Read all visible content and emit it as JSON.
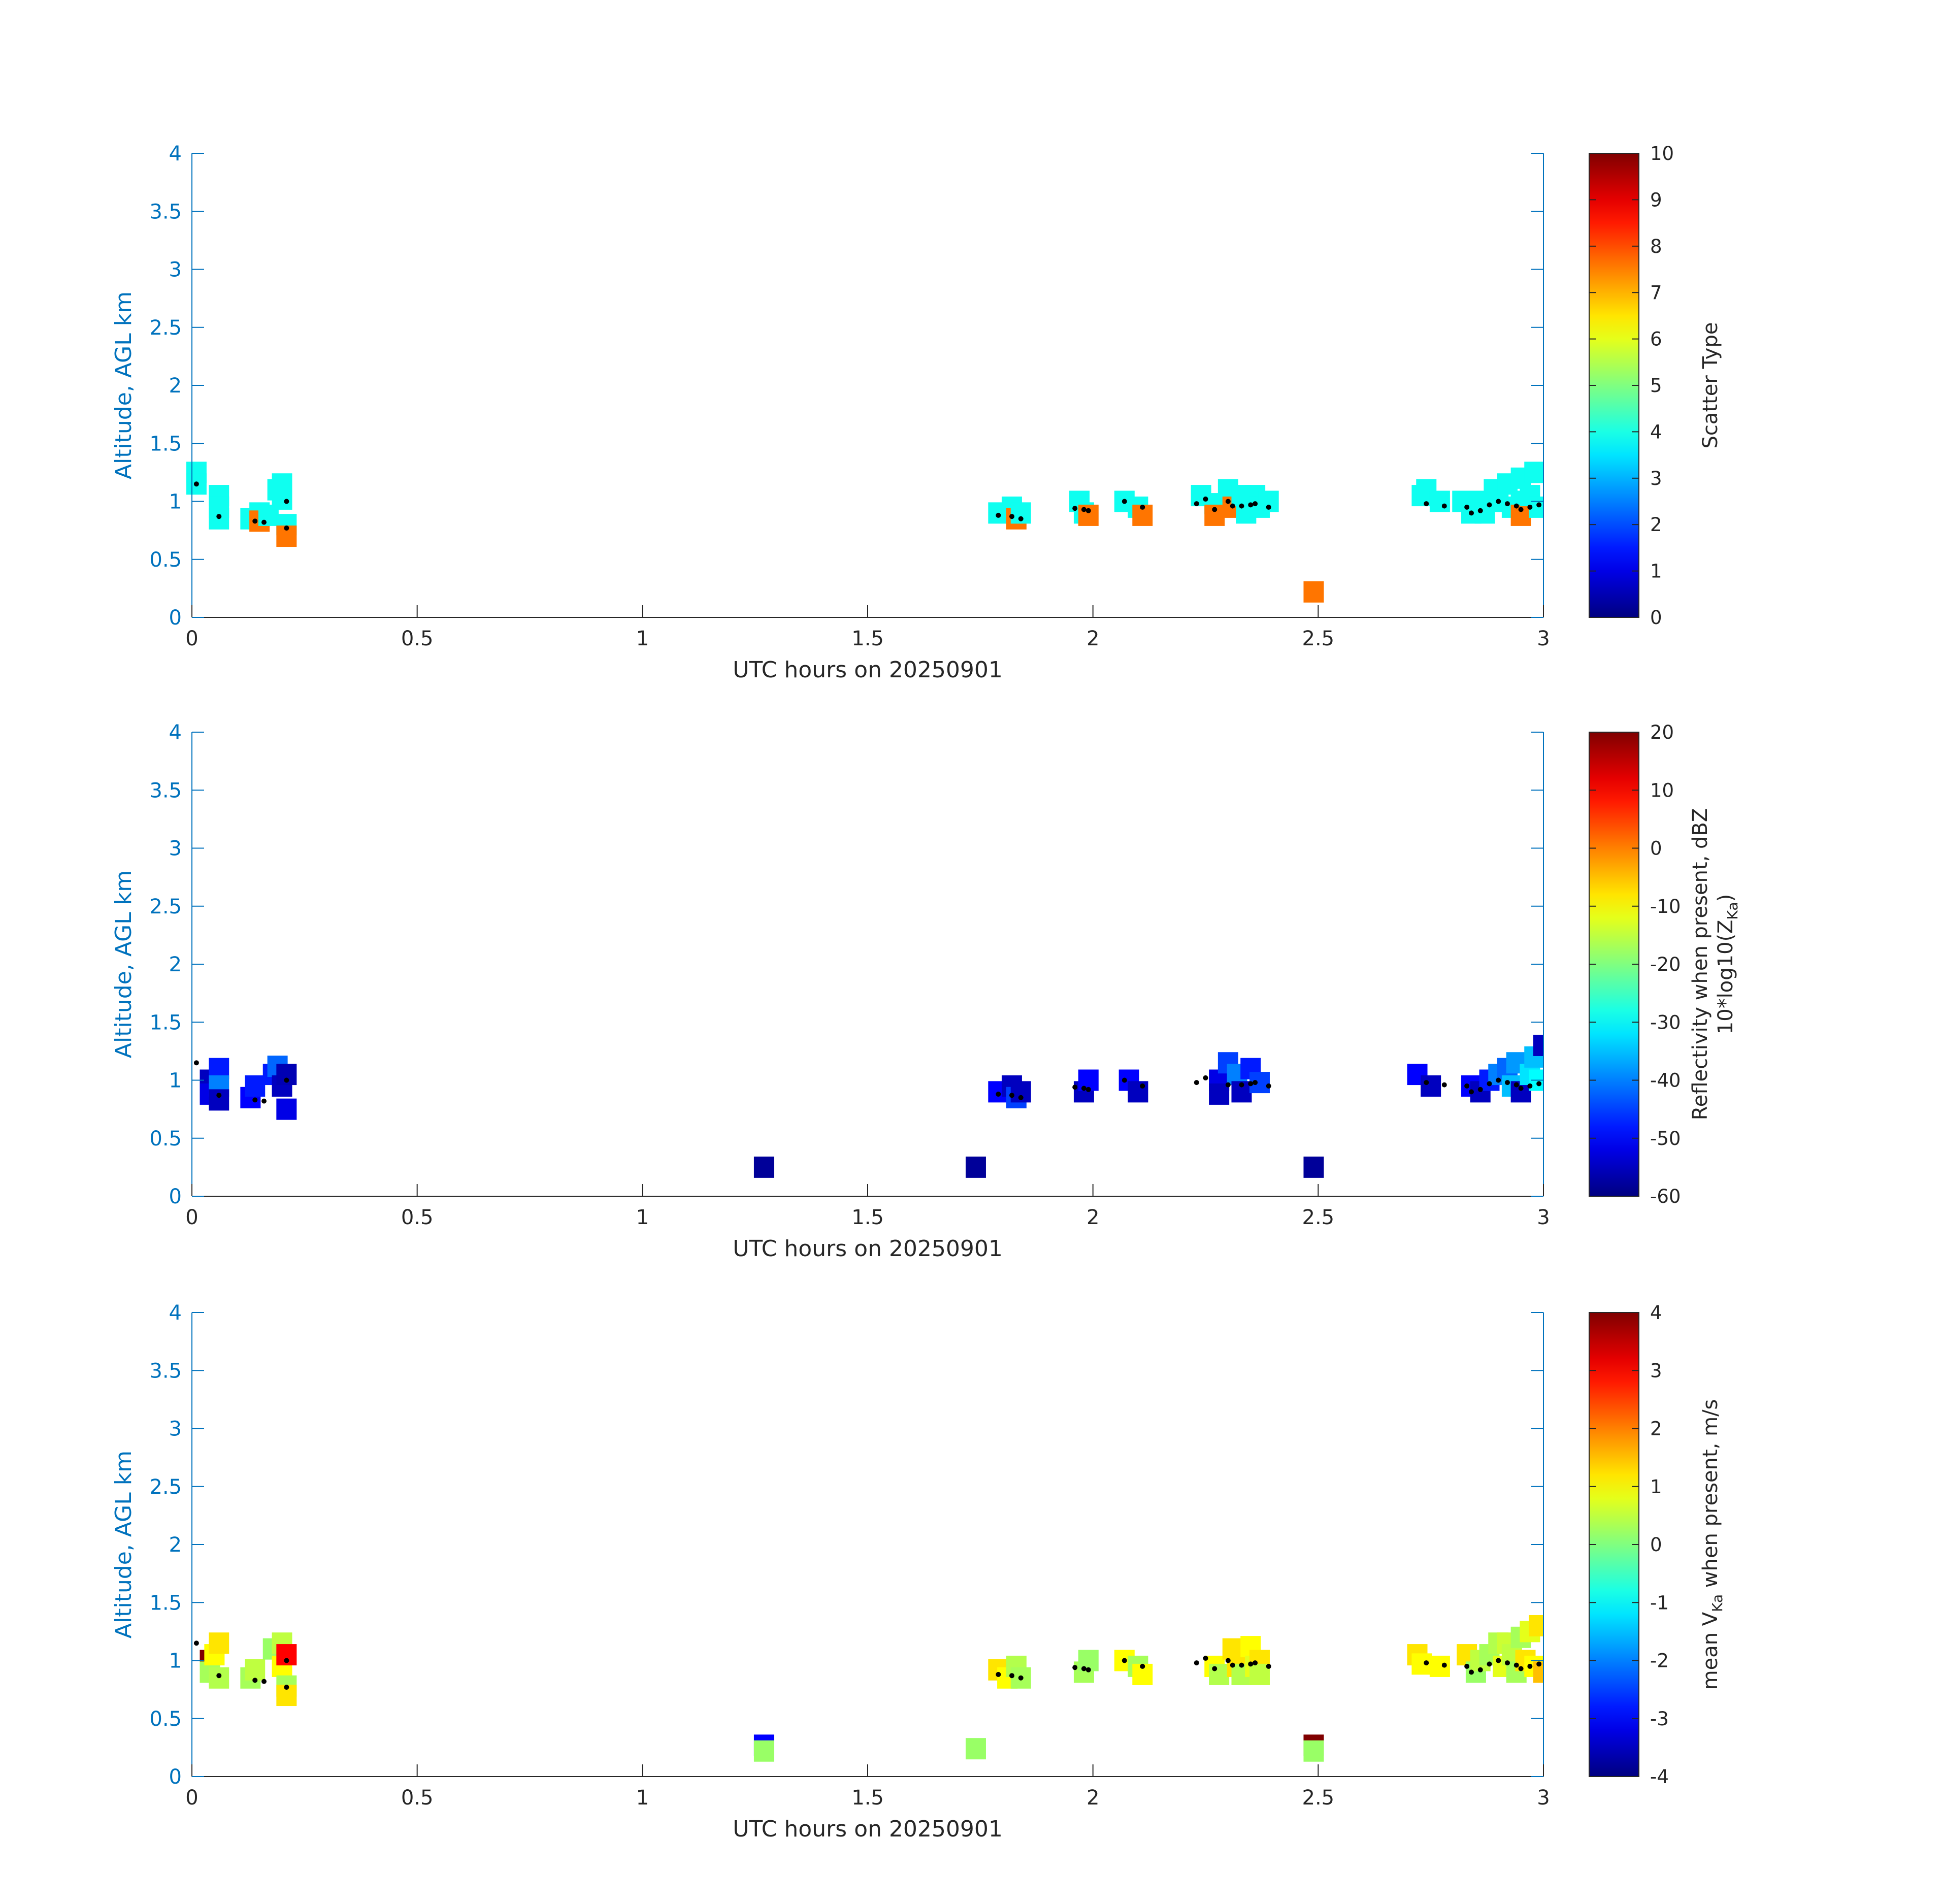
{
  "figure": {
    "x_label": "UTC hours on 20250901",
    "y_label": "Altitude, AGL km"
  },
  "chart_data": [
    {
      "type": "heatmap",
      "name": "scatter-type",
      "xlabel": "UTC hours on 20250901",
      "ylabel": "Altitude, AGL km",
      "xlim": [
        0,
        3
      ],
      "ylim": [
        0,
        4
      ],
      "xticks": [
        "0",
        "0.5",
        "1",
        "1.5",
        "2",
        "2.5",
        "3"
      ],
      "yticks": [
        "0",
        "0.5",
        "1",
        "1.5",
        "2",
        "2.5",
        "3",
        "3.5",
        "4"
      ],
      "colorbar": {
        "label": "Scatter Type",
        "label_sub": "",
        "label_after": "",
        "label2": "",
        "min": 0,
        "max": 10,
        "ticks": [
          "0",
          "1",
          "2",
          "3",
          "4",
          "5",
          "6",
          "7",
          "8",
          "9",
          "10"
        ]
      },
      "cells": [
        [
          0.01,
          1.25,
          3.9
        ],
        [
          0.01,
          1.15,
          3.9
        ],
        [
          0.06,
          1.05,
          3.9
        ],
        [
          0.06,
          0.95,
          3.9
        ],
        [
          0.06,
          0.85,
          3.9
        ],
        [
          0.13,
          0.85,
          3.9
        ],
        [
          0.15,
          0.9,
          3.9
        ],
        [
          0.15,
          0.83,
          7.6
        ],
        [
          0.17,
          0.88,
          3.9
        ],
        [
          0.19,
          1.1,
          3.9
        ],
        [
          0.2,
          1.15,
          3.9
        ],
        [
          0.2,
          1.02,
          3.9
        ],
        [
          0.21,
          0.8,
          3.9
        ],
        [
          0.21,
          0.7,
          7.6
        ],
        [
          1.79,
          0.9,
          3.9
        ],
        [
          1.82,
          0.95,
          3.9
        ],
        [
          1.83,
          0.85,
          7.6
        ],
        [
          1.84,
          0.9,
          3.9
        ],
        [
          1.97,
          1.0,
          3.9
        ],
        [
          1.98,
          0.9,
          3.9
        ],
        [
          1.99,
          0.88,
          7.6
        ],
        [
          2.07,
          1.0,
          3.9
        ],
        [
          2.1,
          0.95,
          3.9
        ],
        [
          2.11,
          0.88,
          7.6
        ],
        [
          2.24,
          1.05,
          3.9
        ],
        [
          2.27,
          0.98,
          3.9
        ],
        [
          2.27,
          0.88,
          7.6
        ],
        [
          2.3,
          1.1,
          3.9
        ],
        [
          2.31,
          0.95,
          7.6
        ],
        [
          2.33,
          1.05,
          3.9
        ],
        [
          2.34,
          0.9,
          3.9
        ],
        [
          2.36,
          1.05,
          3.9
        ],
        [
          2.37,
          0.95,
          3.9
        ],
        [
          2.39,
          1.0,
          3.9
        ],
        [
          2.49,
          0.22,
          7.6
        ],
        [
          2.73,
          1.05,
          3.9
        ],
        [
          2.74,
          1.1,
          3.9
        ],
        [
          2.77,
          1.0,
          3.9
        ],
        [
          2.82,
          1.0,
          3.9
        ],
        [
          2.84,
          0.9,
          3.9
        ],
        [
          2.86,
          1.0,
          3.9
        ],
        [
          2.87,
          0.9,
          3.9
        ],
        [
          2.89,
          1.1,
          3.9
        ],
        [
          2.9,
          1.0,
          3.9
        ],
        [
          2.92,
          1.15,
          3.9
        ],
        [
          2.93,
          0.95,
          3.9
        ],
        [
          2.95,
          1.2,
          3.9
        ],
        [
          2.95,
          1.0,
          3.9
        ],
        [
          2.95,
          0.88,
          7.6
        ],
        [
          2.97,
          1.05,
          3.9
        ],
        [
          2.98,
          1.25,
          3.9
        ],
        [
          2.99,
          0.95,
          3.9
        ]
      ],
      "dots": [
        [
          0.01,
          1.15
        ],
        [
          0.06,
          0.87
        ],
        [
          0.14,
          0.83
        ],
        [
          0.16,
          0.82
        ],
        [
          0.21,
          1.0
        ],
        [
          0.21,
          0.77
        ],
        [
          1.79,
          0.88
        ],
        [
          1.82,
          0.87
        ],
        [
          1.84,
          0.85
        ],
        [
          1.96,
          0.94
        ],
        [
          1.98,
          0.93
        ],
        [
          1.99,
          0.92
        ],
        [
          2.07,
          1.0
        ],
        [
          2.11,
          0.95
        ],
        [
          2.23,
          0.98
        ],
        [
          2.25,
          1.02
        ],
        [
          2.27,
          0.93
        ],
        [
          2.3,
          1.0
        ],
        [
          2.31,
          0.96
        ],
        [
          2.33,
          0.96
        ],
        [
          2.35,
          0.97
        ],
        [
          2.36,
          0.98
        ],
        [
          2.39,
          0.95
        ],
        [
          2.74,
          0.98
        ],
        [
          2.78,
          0.96
        ],
        [
          2.83,
          0.95
        ],
        [
          2.84,
          0.9
        ],
        [
          2.86,
          0.92
        ],
        [
          2.88,
          0.97
        ],
        [
          2.9,
          1.0
        ],
        [
          2.92,
          0.98
        ],
        [
          2.94,
          0.96
        ],
        [
          2.95,
          0.93
        ],
        [
          2.97,
          0.95
        ],
        [
          2.99,
          0.97
        ]
      ]
    },
    {
      "type": "heatmap",
      "name": "reflectivity",
      "xlabel": "UTC hours on 20250901",
      "ylabel": "Altitude, AGL km",
      "xlim": [
        0,
        3
      ],
      "ylim": [
        0,
        4
      ],
      "xticks": [
        "0",
        "0.5",
        "1",
        "1.5",
        "2",
        "2.5",
        "3"
      ],
      "yticks": [
        "0",
        "0.5",
        "1",
        "1.5",
        "2",
        "2.5",
        "3",
        "3.5",
        "4"
      ],
      "colorbar": {
        "label": "Reflectivity when present, dBZ",
        "label2": "10*log10(Z",
        "label_sub": "Ka",
        "label_after": ")",
        "min": -60,
        "max": 20,
        "ticks": [
          "-60",
          "-50",
          "-40",
          "-30",
          "-20",
          "-10",
          "0",
          "10",
          "20"
        ]
      },
      "cells": [
        [
          0.04,
          1.0,
          -55
        ],
        [
          0.04,
          0.88,
          -52
        ],
        [
          0.06,
          1.1,
          -48
        ],
        [
          0.06,
          0.95,
          -40
        ],
        [
          0.06,
          0.83,
          -55
        ],
        [
          0.13,
          0.85,
          -50
        ],
        [
          0.14,
          0.95,
          -48
        ],
        [
          0.18,
          1.05,
          -48
        ],
        [
          0.19,
          1.12,
          -42
        ],
        [
          0.2,
          0.95,
          -55
        ],
        [
          0.21,
          1.05,
          -56
        ],
        [
          0.21,
          0.75,
          -52
        ],
        [
          1.27,
          0.25,
          -58
        ],
        [
          1.74,
          0.25,
          -58
        ],
        [
          1.79,
          0.9,
          -50
        ],
        [
          1.82,
          0.95,
          -55
        ],
        [
          1.83,
          0.85,
          -45
        ],
        [
          1.84,
          0.9,
          -55
        ],
        [
          1.98,
          0.9,
          -55
        ],
        [
          1.99,
          1.0,
          -50
        ],
        [
          2.08,
          1.0,
          -50
        ],
        [
          2.1,
          0.9,
          -55
        ],
        [
          2.28,
          1.0,
          -52
        ],
        [
          2.28,
          0.88,
          -55
        ],
        [
          2.3,
          1.15,
          -45
        ],
        [
          2.32,
          1.05,
          -40
        ],
        [
          2.33,
          0.9,
          -55
        ],
        [
          2.35,
          1.1,
          -48
        ],
        [
          2.37,
          0.98,
          -45
        ],
        [
          2.49,
          0.25,
          -58
        ],
        [
          2.72,
          1.05,
          -50
        ],
        [
          2.75,
          0.95,
          -55
        ],
        [
          2.84,
          0.95,
          -50
        ],
        [
          2.86,
          0.9,
          -55
        ],
        [
          2.88,
          1.0,
          -48
        ],
        [
          2.9,
          1.05,
          -40
        ],
        [
          2.92,
          1.1,
          -42
        ],
        [
          2.93,
          0.95,
          -35
        ],
        [
          2.94,
          1.15,
          -38
        ],
        [
          2.95,
          0.9,
          -55
        ],
        [
          2.97,
          1.05,
          -32
        ],
        [
          2.98,
          1.2,
          -35
        ],
        [
          2.99,
          1.0,
          -30
        ],
        [
          3.0,
          1.3,
          -55
        ]
      ],
      "dots": [
        [
          0.01,
          1.15
        ],
        [
          0.06,
          0.87
        ],
        [
          0.14,
          0.83
        ],
        [
          0.16,
          0.82
        ],
        [
          0.21,
          1.0
        ],
        [
          1.79,
          0.88
        ],
        [
          1.82,
          0.87
        ],
        [
          1.84,
          0.85
        ],
        [
          1.96,
          0.94
        ],
        [
          1.98,
          0.93
        ],
        [
          1.99,
          0.92
        ],
        [
          2.07,
          1.0
        ],
        [
          2.11,
          0.95
        ],
        [
          2.23,
          0.98
        ],
        [
          2.25,
          1.02
        ],
        [
          2.3,
          0.96
        ],
        [
          2.33,
          0.96
        ],
        [
          2.35,
          0.97
        ],
        [
          2.36,
          0.98
        ],
        [
          2.39,
          0.95
        ],
        [
          2.74,
          0.98
        ],
        [
          2.78,
          0.96
        ],
        [
          2.83,
          0.95
        ],
        [
          2.84,
          0.9
        ],
        [
          2.86,
          0.92
        ],
        [
          2.88,
          0.97
        ],
        [
          2.9,
          1.0
        ],
        [
          2.92,
          0.98
        ],
        [
          2.94,
          0.96
        ],
        [
          2.95,
          0.93
        ],
        [
          2.97,
          0.95
        ],
        [
          2.99,
          0.97
        ]
      ]
    },
    {
      "type": "heatmap",
      "name": "mean-velocity",
      "xlabel": "UTC hours on 20250901",
      "ylabel": "Altitude, AGL km",
      "xlim": [
        0,
        3
      ],
      "ylim": [
        0,
        4
      ],
      "xticks": [
        "0",
        "0.5",
        "1",
        "1.5",
        "2",
        "2.5",
        "3"
      ],
      "yticks": [
        "0",
        "0.5",
        "1",
        "1.5",
        "2",
        "2.5",
        "3",
        "3.5",
        "4"
      ],
      "colorbar": {
        "label": "mean V",
        "label_sub": "Ka",
        "label_after": " when present, m/s",
        "label2": "",
        "min": -4,
        "max": 4,
        "ticks": [
          "-4",
          "-3",
          "-2",
          "-1",
          "0",
          "1",
          "2",
          "3",
          "4"
        ]
      },
      "cells": [
        [
          0.04,
          1.0,
          4.0
        ],
        [
          0.04,
          0.9,
          0.3
        ],
        [
          0.05,
          1.05,
          1.0
        ],
        [
          0.06,
          1.15,
          1.2
        ],
        [
          0.06,
          0.85,
          0.4
        ],
        [
          0.13,
          0.85,
          0.3
        ],
        [
          0.14,
          0.92,
          0.5
        ],
        [
          0.18,
          1.1,
          0.2
        ],
        [
          0.2,
          1.15,
          0.5
        ],
        [
          0.2,
          0.95,
          1.0
        ],
        [
          0.21,
          1.05,
          3.0
        ],
        [
          0.21,
          0.78,
          0.3
        ],
        [
          0.21,
          0.7,
          1.2
        ],
        [
          1.27,
          0.27,
          -3.0
        ],
        [
          1.27,
          0.22,
          0.2
        ],
        [
          1.74,
          0.24,
          0.2
        ],
        [
          1.79,
          0.92,
          1.2
        ],
        [
          1.81,
          0.85,
          1.0
        ],
        [
          1.83,
          0.95,
          0.4
        ],
        [
          1.84,
          0.85,
          0.3
        ],
        [
          1.98,
          0.9,
          0.3
        ],
        [
          1.99,
          1.0,
          0.2
        ],
        [
          2.07,
          1.0,
          1.0
        ],
        [
          2.1,
          0.95,
          0.3
        ],
        [
          2.11,
          0.88,
          1.0
        ],
        [
          2.27,
          0.95,
          1.0
        ],
        [
          2.28,
          0.88,
          0.4
        ],
        [
          2.31,
          1.1,
          1.2
        ],
        [
          2.32,
          0.95,
          1.2
        ],
        [
          2.33,
          0.88,
          0.4
        ],
        [
          2.35,
          1.12,
          1.0
        ],
        [
          2.36,
          0.95,
          0.8
        ],
        [
          2.37,
          1.0,
          1.2
        ],
        [
          2.37,
          0.88,
          0.5
        ],
        [
          2.49,
          0.27,
          4.0
        ],
        [
          2.49,
          0.22,
          0.2
        ],
        [
          2.72,
          1.05,
          1.2
        ],
        [
          2.73,
          0.97,
          1.0
        ],
        [
          2.77,
          0.95,
          1.0
        ],
        [
          2.83,
          1.05,
          1.2
        ],
        [
          2.85,
          0.9,
          0.2
        ],
        [
          2.86,
          1.0,
          0.5
        ],
        [
          2.88,
          1.05,
          0.3
        ],
        [
          2.9,
          1.15,
          0.4
        ],
        [
          2.91,
          0.95,
          0.8
        ],
        [
          2.92,
          1.15,
          0.6
        ],
        [
          2.93,
          1.05,
          0.5
        ],
        [
          2.94,
          0.9,
          0.3
        ],
        [
          2.95,
          1.2,
          0.3
        ],
        [
          2.96,
          1.0,
          1.2
        ],
        [
          2.97,
          1.25,
          0.8
        ],
        [
          2.98,
          0.95,
          1.0
        ],
        [
          2.99,
          1.3,
          1.2
        ],
        [
          3.0,
          0.9,
          1.5
        ]
      ],
      "dots": [
        [
          0.01,
          1.15
        ],
        [
          0.06,
          0.87
        ],
        [
          0.14,
          0.83
        ],
        [
          0.16,
          0.82
        ],
        [
          0.21,
          1.0
        ],
        [
          0.21,
          0.77
        ],
        [
          1.79,
          0.88
        ],
        [
          1.82,
          0.87
        ],
        [
          1.84,
          0.85
        ],
        [
          1.96,
          0.94
        ],
        [
          1.98,
          0.93
        ],
        [
          1.99,
          0.92
        ],
        [
          2.07,
          1.0
        ],
        [
          2.11,
          0.95
        ],
        [
          2.23,
          0.98
        ],
        [
          2.25,
          1.02
        ],
        [
          2.27,
          0.93
        ],
        [
          2.3,
          1.0
        ],
        [
          2.31,
          0.96
        ],
        [
          2.33,
          0.96
        ],
        [
          2.35,
          0.97
        ],
        [
          2.36,
          0.98
        ],
        [
          2.39,
          0.95
        ],
        [
          2.74,
          0.98
        ],
        [
          2.78,
          0.96
        ],
        [
          2.83,
          0.95
        ],
        [
          2.84,
          0.9
        ],
        [
          2.86,
          0.92
        ],
        [
          2.88,
          0.97
        ],
        [
          2.9,
          1.0
        ],
        [
          2.92,
          0.98
        ],
        [
          2.94,
          0.96
        ],
        [
          2.95,
          0.93
        ],
        [
          2.97,
          0.95
        ],
        [
          2.99,
          0.97
        ]
      ]
    }
  ]
}
